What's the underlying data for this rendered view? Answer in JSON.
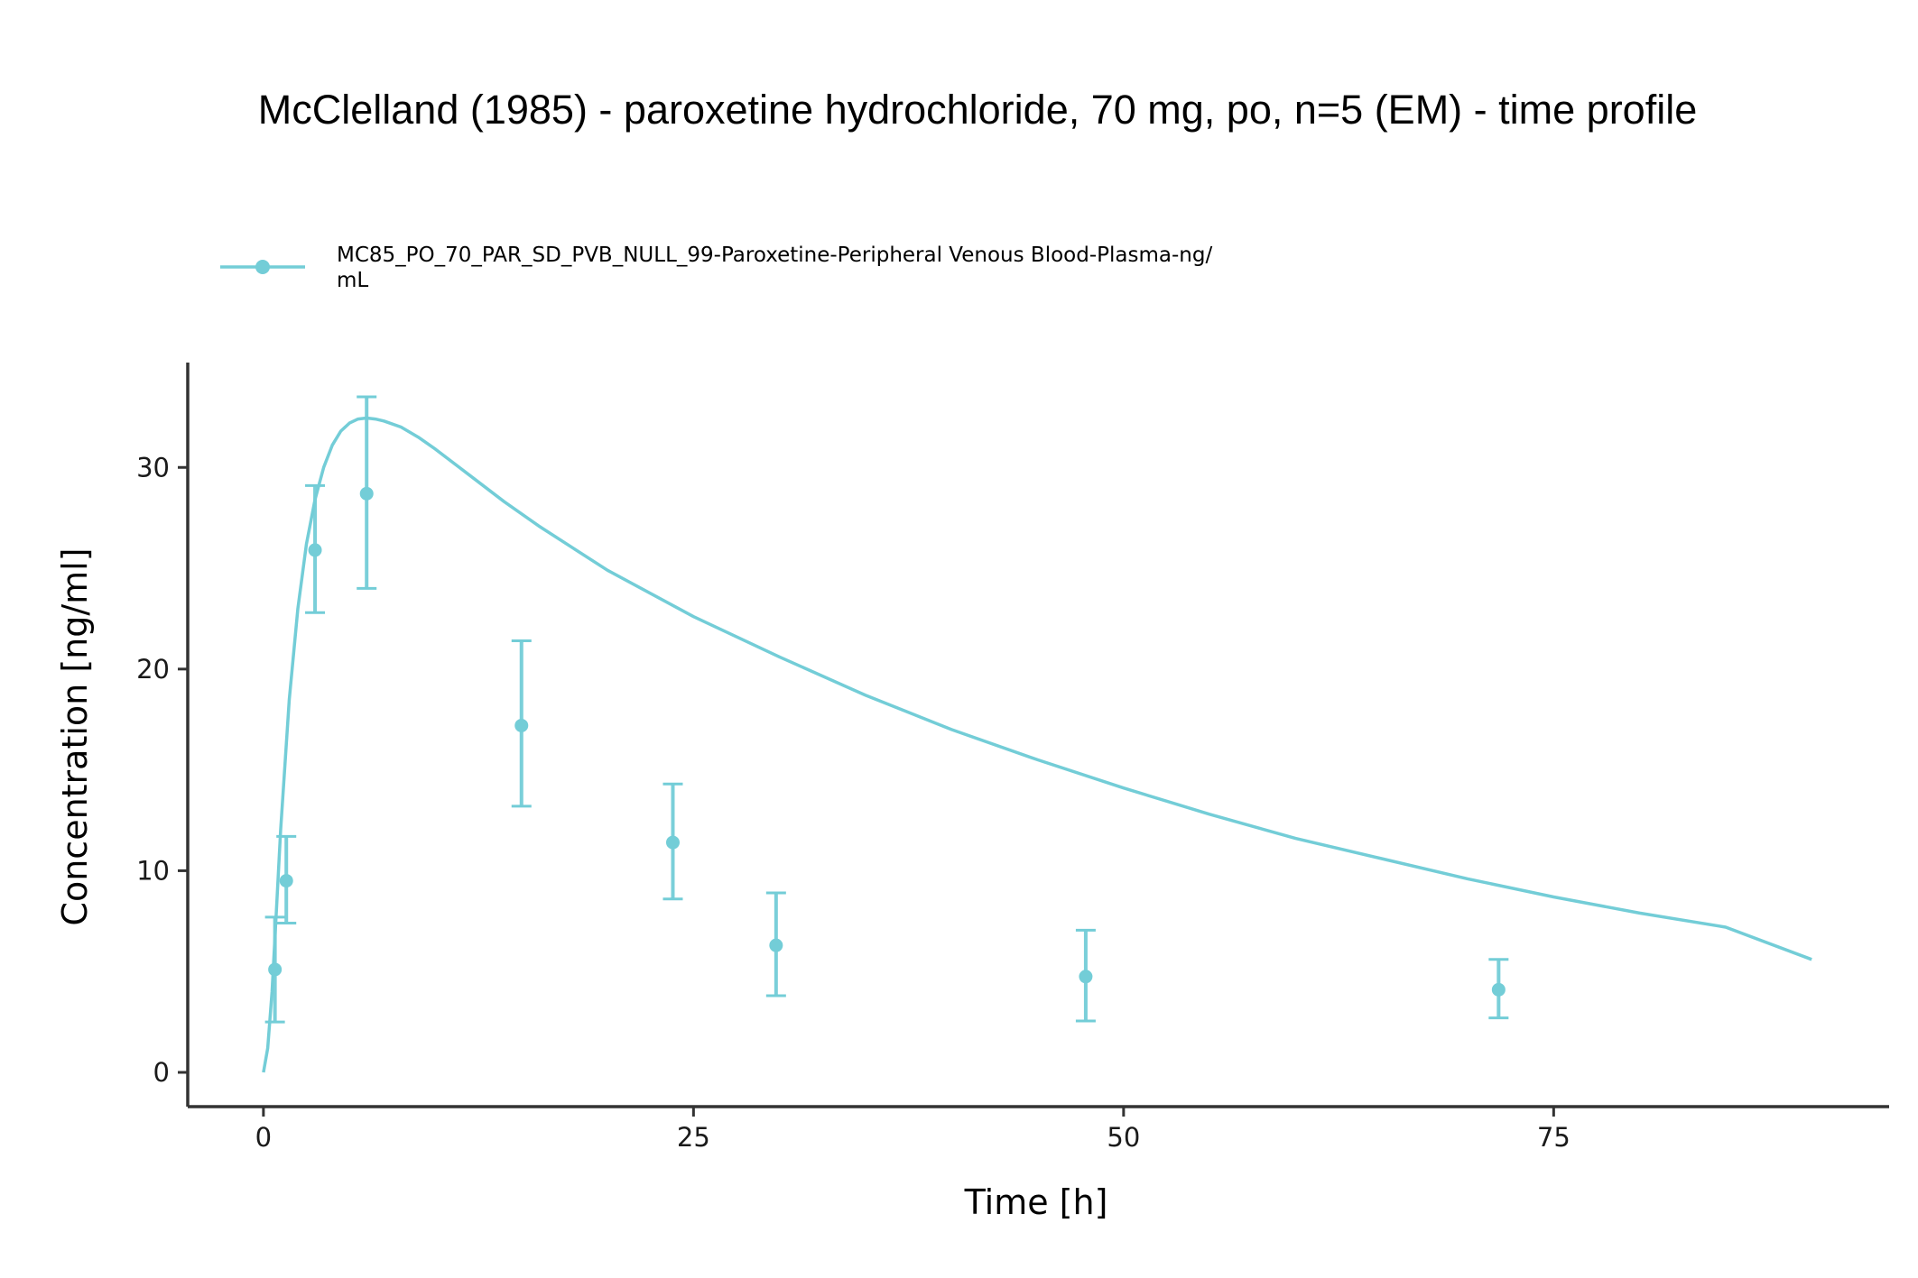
{
  "chart_data": {
    "type": "line",
    "title": "McClelland (1985) - paroxetine hydrochloride, 70 mg, po, n=5 (EM) - time profile",
    "xlabel": "Time [h]",
    "ylabel": "Concentration [ng/ml]",
    "xlim": [
      -4.4,
      94.5
    ],
    "ylim": [
      -1.7,
      35.2
    ],
    "x_ticks": [
      0,
      25,
      50,
      75
    ],
    "y_ticks": [
      0,
      10,
      20,
      30
    ],
    "grid": false,
    "legend_position": "top-left",
    "legend": {
      "line1": "MC85_PO_70_PAR_SD_PVB_NULL_99-Paroxetine-Peripheral Venous Blood-Plasma-ng/",
      "line2": "mL"
    },
    "color": "#73CDD7",
    "observed": {
      "x": [
        0.67,
        1.33,
        3,
        6,
        15,
        23.8,
        29.8,
        47.8,
        71.8
      ],
      "y": [
        5.1,
        9.5,
        25.9,
        28.7,
        17.2,
        11.4,
        6.3,
        4.75,
        4.1
      ],
      "y_low": [
        2.5,
        7.4,
        22.8,
        24.0,
        13.2,
        8.6,
        3.8,
        2.55,
        2.7
      ],
      "y_high": [
        7.7,
        11.7,
        29.1,
        33.5,
        21.4,
        14.3,
        8.9,
        7.05,
        5.6
      ]
    },
    "simulated": {
      "x": [
        0,
        0.25,
        0.5,
        0.75,
        1,
        1.5,
        2,
        2.5,
        3,
        3.5,
        4,
        4.5,
        5,
        5.5,
        6,
        6.5,
        7,
        8,
        9,
        10,
        12,
        14,
        16,
        18,
        20,
        25,
        30,
        35,
        40,
        45,
        50,
        55,
        60,
        65,
        70,
        75,
        80,
        85,
        90
      ],
      "y": [
        0,
        1.2,
        4.0,
        8.0,
        12.0,
        18.5,
        23.0,
        26.2,
        28.4,
        30.0,
        31.1,
        31.8,
        32.2,
        32.4,
        32.45,
        32.4,
        32.3,
        32.0,
        31.5,
        30.9,
        29.6,
        28.3,
        27.1,
        26.0,
        24.9,
        22.6,
        20.6,
        18.7,
        17.0,
        15.5,
        14.1,
        12.8,
        11.6,
        10.6,
        9.6,
        8.7,
        7.9,
        7.2,
        5.6
      ]
    }
  }
}
